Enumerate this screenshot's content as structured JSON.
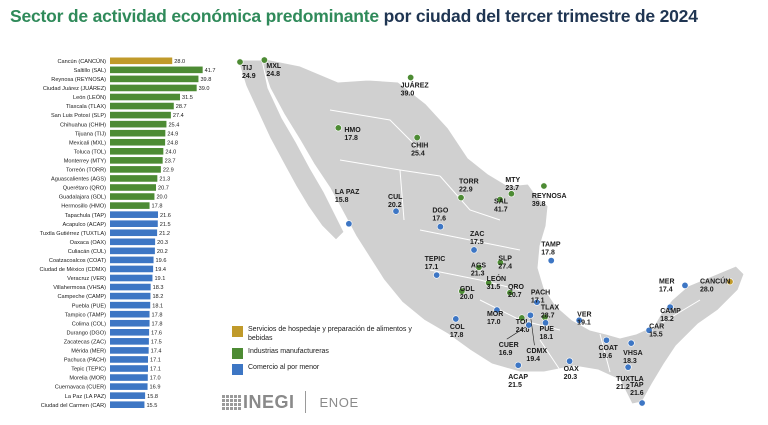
{
  "title_part1": "Sector de actividad económica predominante",
  "title_part2": "por ciudad del tercer trimestre de 2024",
  "colors": {
    "hospedaje": "#c09a2a",
    "manufactura": "#4d8b34",
    "comercio": "#3d76c4",
    "map_fill": "#d0d0d0",
    "map_stroke": "#ffffff"
  },
  "legend": [
    {
      "key": "hospedaje",
      "label": "Servicios de hospedaje y preparación de alimentos y bebidas"
    },
    {
      "key": "manufactura",
      "label": "Industrias manufactureras"
    },
    {
      "key": "comercio",
      "label": "Comercio al por menor"
    }
  ],
  "logos": {
    "inegi": "INEGI",
    "enoe": "ENOE"
  },
  "chart_data": {
    "type": "bar",
    "orientation": "horizontal",
    "title": "Sector de actividad económica predominante por ciudad del tercer trimestre de 2024",
    "xlim": [
      0,
      45
    ],
    "bars": [
      {
        "label": "Cancún (CANCÚN)",
        "value": 28.0,
        "sector": "hospedaje"
      },
      {
        "label": "Saltillo (SAL)",
        "value": 41.7,
        "sector": "manufactura"
      },
      {
        "label": "Reynosa (REYNOSA)",
        "value": 39.8,
        "sector": "manufactura"
      },
      {
        "label": "Ciudad Juárez (JUÁREZ)",
        "value": 39.0,
        "sector": "manufactura"
      },
      {
        "label": "León (LEÓN)",
        "value": 31.5,
        "sector": "manufactura"
      },
      {
        "label": "Tlaxcala (TLAX)",
        "value": 28.7,
        "sector": "manufactura"
      },
      {
        "label": "San Luis Potosí (SLP)",
        "value": 27.4,
        "sector": "manufactura"
      },
      {
        "label": "Chihuahua (CHIH)",
        "value": 25.4,
        "sector": "manufactura"
      },
      {
        "label": "Tijuana (TIJ)",
        "value": 24.9,
        "sector": "manufactura"
      },
      {
        "label": "Mexicali (MXL)",
        "value": 24.8,
        "sector": "manufactura"
      },
      {
        "label": "Toluca (TOL)",
        "value": 24.0,
        "sector": "manufactura"
      },
      {
        "label": "Monterrey (MTY)",
        "value": 23.7,
        "sector": "manufactura"
      },
      {
        "label": "Torreón (TORR)",
        "value": 22.9,
        "sector": "manufactura"
      },
      {
        "label": "Aguascalientes (AGS)",
        "value": 21.3,
        "sector": "manufactura"
      },
      {
        "label": "Querétaro (QRO)",
        "value": 20.7,
        "sector": "manufactura"
      },
      {
        "label": "Guadalajara (GDL)",
        "value": 20.0,
        "sector": "manufactura"
      },
      {
        "label": "Hermosillo (HMO)",
        "value": 17.8,
        "sector": "manufactura"
      },
      {
        "label": "Tapachula (TAP)",
        "value": 21.6,
        "sector": "comercio"
      },
      {
        "label": "Acapulco (ACAP)",
        "value": 21.5,
        "sector": "comercio"
      },
      {
        "label": "Tuxtla Gutiérrez (TUXTLA)",
        "value": 21.2,
        "sector": "comercio"
      },
      {
        "label": "Oaxaca (OAX)",
        "value": 20.3,
        "sector": "comercio"
      },
      {
        "label": "Culiacán (CUL)",
        "value": 20.2,
        "sector": "comercio"
      },
      {
        "label": "Coatzacoalcos (COAT)",
        "value": 19.6,
        "sector": "comercio"
      },
      {
        "label": "Ciudad de México (CDMX)",
        "value": 19.4,
        "sector": "comercio"
      },
      {
        "label": "Veracruz (VER)",
        "value": 19.1,
        "sector": "comercio"
      },
      {
        "label": "Villahermosa (VHSA)",
        "value": 18.3,
        "sector": "comercio"
      },
      {
        "label": "Campeche (CAMP)",
        "value": 18.2,
        "sector": "comercio"
      },
      {
        "label": "Puebla (PUE)",
        "value": 18.1,
        "sector": "comercio"
      },
      {
        "label": "Tampico (TAMP)",
        "value": 17.8,
        "sector": "comercio"
      },
      {
        "label": "Colima (COL)",
        "value": 17.8,
        "sector": "comercio"
      },
      {
        "label": "Durango (DGO)",
        "value": 17.6,
        "sector": "comercio"
      },
      {
        "label": "Zacatecas (ZAC)",
        "value": 17.5,
        "sector": "comercio"
      },
      {
        "label": "Mérida (MER)",
        "value": 17.4,
        "sector": "comercio"
      },
      {
        "label": "Pachuca (PACH)",
        "value": 17.1,
        "sector": "comercio"
      },
      {
        "label": "Tepic (TEPIC)",
        "value": 17.1,
        "sector": "comercio"
      },
      {
        "label": "Morelia (MOR)",
        "value": 17.0,
        "sector": "comercio"
      },
      {
        "label": "Cuernavaca (CUER)",
        "value": 16.9,
        "sector": "comercio"
      },
      {
        "label": "La Paz (LA PAZ)",
        "value": 15.8,
        "sector": "comercio"
      },
      {
        "label": "Ciudad del Carmen (CAR)",
        "value": 15.5,
        "sector": "comercio"
      }
    ],
    "map_cities": [
      {
        "code": "TIJ",
        "value": "24.9",
        "sector": "manufactura",
        "lon": -117.0,
        "lat": 32.5
      },
      {
        "code": "MXL",
        "value": "24.8",
        "sector": "manufactura",
        "lon": -115.5,
        "lat": 32.6
      },
      {
        "code": "JUÁREZ",
        "value": "39.0",
        "sector": "manufactura",
        "lon": -106.5,
        "lat": 31.7
      },
      {
        "code": "HMO",
        "value": "17.8",
        "sector": "manufactura",
        "lon": -110.95,
        "lat": 29.1
      },
      {
        "code": "CHIH",
        "value": "25.4",
        "sector": "manufactura",
        "lon": -106.1,
        "lat": 28.6
      },
      {
        "code": "TORR",
        "value": "22.9",
        "sector": "manufactura",
        "lon": -103.4,
        "lat": 25.5
      },
      {
        "code": "MTY",
        "value": "23.7",
        "sector": "manufactura",
        "lon": -100.3,
        "lat": 25.7
      },
      {
        "code": "REYNOSA",
        "value": "39.8",
        "sector": "manufactura",
        "lon": -98.3,
        "lat": 26.1
      },
      {
        "code": "SAL",
        "value": "41.7",
        "sector": "manufactura",
        "lon": -101.0,
        "lat": 25.4
      },
      {
        "code": "LA PAZ",
        "value": "15.8",
        "sector": "comercio",
        "lon": -110.3,
        "lat": 24.15
      },
      {
        "code": "CUL",
        "value": "20.2",
        "sector": "comercio",
        "lon": -107.4,
        "lat": 24.8
      },
      {
        "code": "DGO",
        "value": "17.6",
        "sector": "comercio",
        "lon": -104.67,
        "lat": 24.0
      },
      {
        "code": "ZAC",
        "value": "17.5",
        "sector": "comercio",
        "lon": -102.6,
        "lat": 22.8
      },
      {
        "code": "TAMP",
        "value": "17.8",
        "sector": "comercio",
        "lon": -97.85,
        "lat": 22.25
      },
      {
        "code": "TEPIC",
        "value": "17.1",
        "sector": "comercio",
        "lon": -104.9,
        "lat": 21.5
      },
      {
        "code": "AGS",
        "value": "21.3",
        "sector": "manufactura",
        "lon": -102.3,
        "lat": 21.9
      },
      {
        "code": "SLP",
        "value": "27.4",
        "sector": "manufactura",
        "lon": -100.98,
        "lat": 22.15
      },
      {
        "code": "LEÓN",
        "value": "31.5",
        "sector": "manufactura",
        "lon": -101.7,
        "lat": 21.1
      },
      {
        "code": "GDL",
        "value": "20.0",
        "sector": "manufactura",
        "lon": -103.35,
        "lat": 20.67
      },
      {
        "code": "QRO",
        "value": "20.7",
        "sector": "manufactura",
        "lon": -100.39,
        "lat": 20.59
      },
      {
        "code": "PACH",
        "value": "17.1",
        "sector": "comercio",
        "lon": -98.73,
        "lat": 20.1
      },
      {
        "code": "TLAX",
        "value": "28.7",
        "sector": "manufactura",
        "lon": -98.24,
        "lat": 19.32
      },
      {
        "code": "MOR",
        "value": "17.0",
        "sector": "comercio",
        "lon": -101.19,
        "lat": 19.7
      },
      {
        "code": "TOL",
        "value": "24.0",
        "sector": "manufactura",
        "lon": -99.66,
        "lat": 19.29
      },
      {
        "code": "COL",
        "value": "17.8",
        "sector": "comercio",
        "lon": -103.72,
        "lat": 19.24
      },
      {
        "code": "PUE",
        "value": "18.1",
        "sector": "comercio",
        "lon": -98.2,
        "lat": 19.04
      },
      {
        "code": "VER",
        "value": "19.1",
        "sector": "comercio",
        "lon": -96.13,
        "lat": 19.17
      },
      {
        "code": "ACAP",
        "value": "21.5",
        "sector": "comercio",
        "lon": -99.88,
        "lat": 16.85
      },
      {
        "code": "CUER",
        "value": "16.9",
        "sector": "comercio",
        "lon": -99.23,
        "lat": 18.92
      },
      {
        "code": "CDMX",
        "value": "19.4",
        "sector": "comercio",
        "lon": -99.13,
        "lat": 19.43
      },
      {
        "code": "OAX",
        "value": "20.3",
        "sector": "comercio",
        "lon": -96.72,
        "lat": 17.06
      },
      {
        "code": "COAT",
        "value": "19.6",
        "sector": "comercio",
        "lon": -94.45,
        "lat": 18.14
      },
      {
        "code": "VHSA",
        "value": "18.3",
        "sector": "comercio",
        "lon": -92.93,
        "lat": 17.99
      },
      {
        "code": "TUXTLA",
        "value": "21.2",
        "sector": "comercio",
        "lon": -93.12,
        "lat": 16.75
      },
      {
        "code": "TAP",
        "value": "21.6",
        "sector": "comercio",
        "lon": -92.26,
        "lat": 14.9
      },
      {
        "code": "CAR",
        "value": "15.5",
        "sector": "comercio",
        "lon": -91.83,
        "lat": 18.65
      },
      {
        "code": "CAMP",
        "value": "18.2",
        "sector": "comercio",
        "lon": -90.53,
        "lat": 19.85
      },
      {
        "code": "MER",
        "value": "17.4",
        "sector": "comercio",
        "lon": -89.62,
        "lat": 20.97
      },
      {
        "code": "CANCÚN",
        "value": "28.0",
        "sector": "hospedaje",
        "lon": -86.85,
        "lat": 21.16
      }
    ]
  }
}
